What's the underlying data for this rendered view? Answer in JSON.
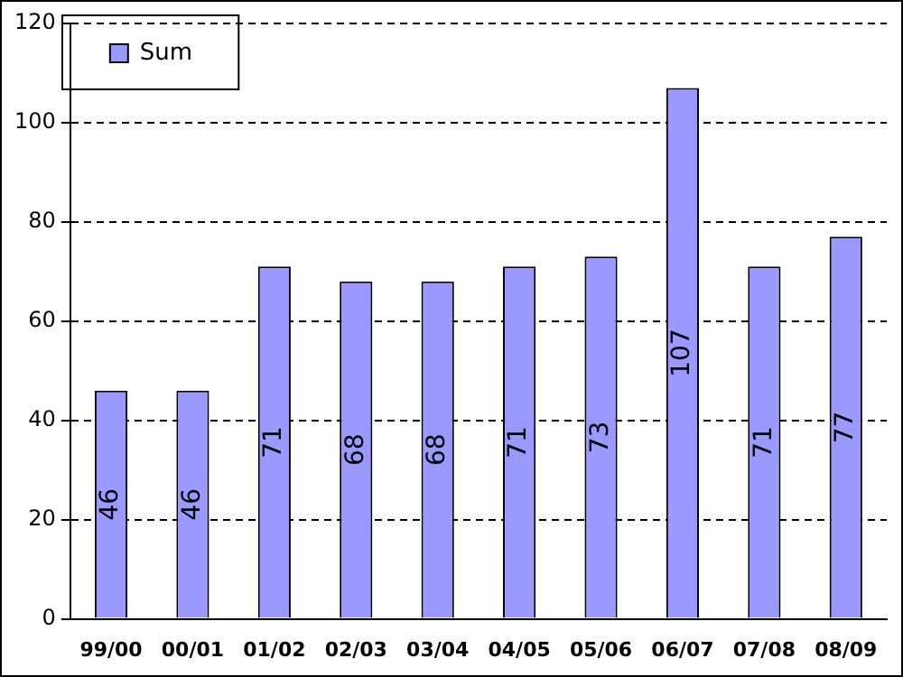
{
  "chart_data": {
    "type": "bar",
    "categories": [
      "99/00",
      "00/01",
      "01/02",
      "02/03",
      "03/04",
      "04/05",
      "05/06",
      "06/07",
      "07/08",
      "08/09"
    ],
    "series": [
      {
        "name": "Sum",
        "color": "#9999ff",
        "values": [
          46,
          46,
          71,
          68,
          68,
          71,
          73,
          107,
          71,
          77
        ]
      }
    ],
    "ylim": [
      0,
      120
    ],
    "yticks": [
      0,
      20,
      40,
      60,
      80,
      100,
      120
    ],
    "grid": "y",
    "legend": "top left",
    "data_labels": true
  }
}
